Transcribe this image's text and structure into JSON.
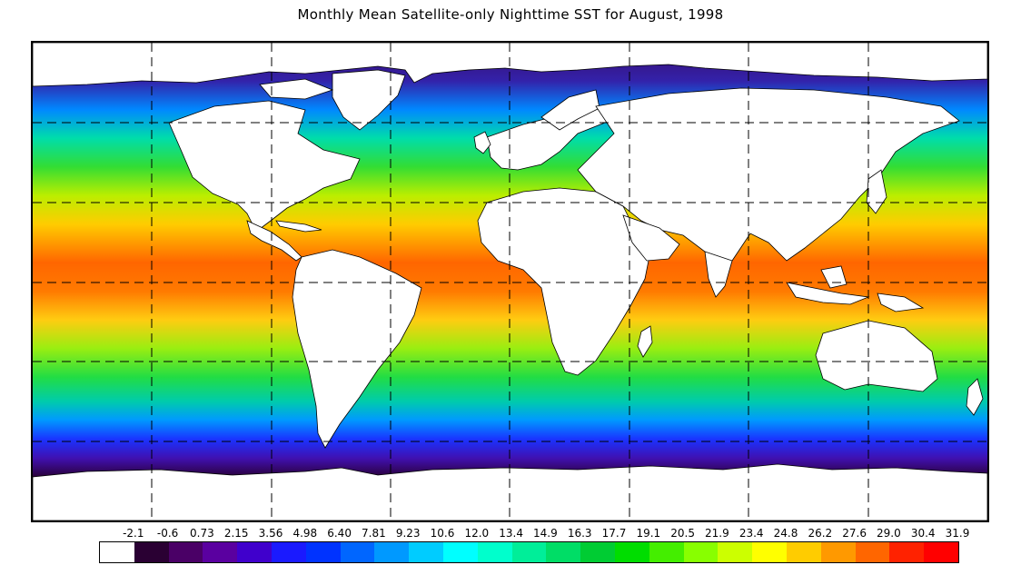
{
  "title": "Monthly Mean Satellite-only Nighttime SST for August, 1998",
  "map": {
    "projection": "equirectangular world",
    "gridlines": "dashed",
    "land_color": "#ffffff",
    "coastline_color": "#000000"
  },
  "scale": {
    "labels": [
      "-2.1",
      "-0.6",
      "0.73",
      "2.15",
      "3.56",
      "4.98",
      "6.40",
      "7.81",
      "9.23",
      "10.6",
      "12.0",
      "13.4",
      "14.9",
      "16.3",
      "17.7",
      "19.1",
      "20.5",
      "21.9",
      "23.4",
      "24.8",
      "26.2",
      "27.6",
      "29.0",
      "30.4",
      "31.9"
    ],
    "colors": [
      "#ffffff",
      "#2a0033",
      "#4a0066",
      "#5a00a0",
      "#4000cc",
      "#1a1aff",
      "#0033ff",
      "#0066ff",
      "#0099ff",
      "#00ccff",
      "#00ffff",
      "#00ffcc",
      "#00ee99",
      "#00dd66",
      "#00cc33",
      "#00dd00",
      "#44ee00",
      "#88ff00",
      "#ccff00",
      "#ffff00",
      "#ffcc00",
      "#ff9900",
      "#ff6600",
      "#ff2200",
      "#ff0000"
    ]
  }
}
